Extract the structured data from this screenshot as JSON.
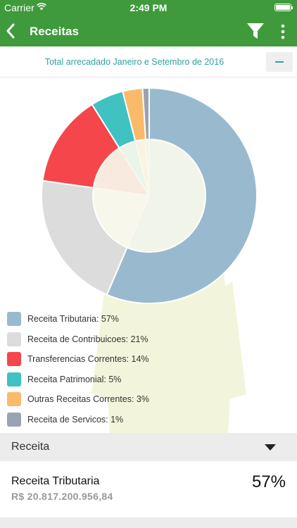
{
  "status_bar": {
    "carrier": "Carrier",
    "time": "2:49 PM"
  },
  "nav": {
    "title": "Receitas"
  },
  "subheader": {
    "title": "Total arrecadado Janeiro e Setembro de 2016"
  },
  "chart_data": {
    "type": "pie",
    "donut": true,
    "categories": [
      "Receita Tributaria",
      "Receita de Contribuicoes",
      "Transferencias Correntes",
      "Receita Patrimonial",
      "Outras Receitas Correntes",
      "Receita de Servicos"
    ],
    "values": [
      57,
      21,
      14,
      5,
      3,
      1
    ],
    "colors": [
      "#99bace",
      "#dcdcdc",
      "#f5464b",
      "#3fc2c1",
      "#fbb96a",
      "#9ba3b2"
    ],
    "legend_placement": "bottom-left"
  },
  "legend": [
    {
      "label": "Receita Tributaria: 57%",
      "color": "#99bace"
    },
    {
      "label": "Receita de Contribuicoes: 21%",
      "color": "#dcdcdc"
    },
    {
      "label": "Transferencias Correntes: 14%",
      "color": "#f5464b"
    },
    {
      "label": "Receita Patrimonial: 5%",
      "color": "#3fc2c1"
    },
    {
      "label": "Outras Receitas Correntes: 3%",
      "color": "#fbb96a"
    },
    {
      "label": "Receita de Servicos: 1%",
      "color": "#9ba3b2"
    }
  ],
  "section": {
    "label": "Receita"
  },
  "rows": [
    {
      "name": "Receita Tributaria",
      "value": "R$ 20.817.200.956,84",
      "percent": "57%"
    }
  ],
  "colors": {
    "brand": "#3e9a3a",
    "accent": "#2ea39a"
  },
  "icons": {
    "back": "chevron-left-icon",
    "filter": "filter-icon",
    "more": "more-vertical-icon",
    "collapse": "minus-icon",
    "expand": "caret-down-icon"
  }
}
